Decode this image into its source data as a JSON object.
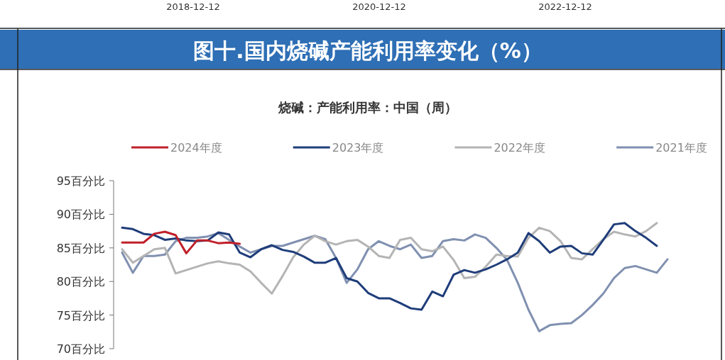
{
  "chart_data": {
    "type": "line",
    "title": "图十.国内烧碱产能利用率变化（%）",
    "subtitle": "烧碱：产能利用率：中国（周）",
    "annotations": [
      "2018-12-12",
      "2020-12-12",
      "2022-12-12"
    ],
    "categories": [
      null,
      null,
      null,
      null,
      null,
      null,
      null,
      null,
      null,
      null,
      null,
      null,
      null,
      null,
      null,
      null,
      null,
      null,
      null,
      null,
      null,
      null,
      null,
      null,
      null,
      null,
      null,
      null,
      null,
      null,
      null,
      null,
      null,
      null,
      null,
      null,
      null,
      null,
      null,
      null,
      null,
      null,
      null,
      null,
      null,
      null,
      null,
      null,
      null,
      null,
      null,
      null
    ],
    "ylim": [
      70,
      95
    ],
    "yticks": [
      {
        "value": 70,
        "label": "70百分比"
      },
      {
        "value": 75,
        "label": "75百分比"
      },
      {
        "value": 80,
        "label": "80百分比"
      },
      {
        "value": 85,
        "label": "85百分比"
      },
      {
        "value": 90,
        "label": "90百分比"
      },
      {
        "value": 95,
        "label": "95百分比"
      }
    ],
    "tick_labels": "y",
    "legend": "top",
    "grid": false,
    "marker": "none",
    "line_style": "solid",
    "series": [
      {
        "name": "2024年度",
        "color": "#c0202a",
        "values": [
          85.8,
          85.8,
          85.8,
          87.1,
          87.4,
          86.9,
          84.2,
          86.1,
          86.1,
          85.7,
          85.8,
          85.6,
          null,
          null,
          null,
          null,
          null,
          null,
          null,
          null,
          null,
          null,
          null,
          null,
          null,
          null,
          null,
          null,
          null,
          null,
          null,
          null,
          null,
          null,
          null,
          null,
          null,
          null,
          null,
          null,
          null,
          null,
          null,
          null,
          null,
          null,
          null,
          null,
          null,
          null,
          null,
          null
        ]
      },
      {
        "name": "2023年度",
        "color": "#1f3d7a",
        "values": [
          88.0,
          87.8,
          87.1,
          86.9,
          86.2,
          86.4,
          86.1,
          86.0,
          86.1,
          87.3,
          87.0,
          84.3,
          83.6,
          84.8,
          85.4,
          84.7,
          84.4,
          83.7,
          82.8,
          82.8,
          83.5,
          80.5,
          80.0,
          78.3,
          77.5,
          77.5,
          76.8,
          76.0,
          75.8,
          78.5,
          77.8,
          81.0,
          81.7,
          81.3,
          81.8,
          82.5,
          83.3,
          84.3,
          87.2,
          86.0,
          84.3,
          85.2,
          85.3,
          84.2,
          84.0,
          86.2,
          88.5,
          88.7,
          87.5,
          86.5,
          85.3,
          null
        ]
      },
      {
        "name": "2022年度",
        "color": "#b4b4b4",
        "values": [
          84.8,
          82.8,
          83.8,
          84.8,
          85.0,
          81.2,
          81.7,
          82.2,
          82.7,
          83.0,
          82.7,
          82.5,
          81.5,
          79.8,
          78.2,
          80.8,
          83.6,
          85.5,
          86.8,
          86.0,
          85.5,
          86.0,
          86.2,
          85.2,
          83.8,
          83.5,
          86.2,
          86.5,
          84.8,
          84.5,
          85.2,
          83.2,
          80.5,
          80.7,
          82.2,
          84.0,
          83.8,
          83.7,
          86.5,
          88.0,
          87.5,
          86.0,
          83.5,
          83.3,
          84.8,
          86.3,
          87.4,
          87.0,
          86.7,
          87.5,
          88.7,
          null
        ]
      },
      {
        "name": "2021年度",
        "color": "#8090b0",
        "values": [
          84.3,
          81.3,
          83.8,
          83.8,
          84.0,
          86.0,
          86.5,
          86.5,
          86.7,
          87.2,
          86.2,
          85.2,
          84.3,
          84.8,
          85.3,
          85.3,
          85.8,
          86.3,
          86.8,
          86.3,
          83.5,
          79.8,
          81.8,
          84.8,
          86.0,
          85.3,
          84.8,
          85.5,
          83.5,
          83.8,
          86.0,
          86.3,
          86.1,
          87.0,
          86.5,
          85.0,
          83.2,
          79.8,
          75.8,
          72.6,
          73.5,
          73.7,
          73.8,
          75.0,
          76.5,
          78.2,
          80.5,
          82.0,
          82.3,
          81.8,
          81.3,
          83.3
        ]
      }
    ]
  }
}
